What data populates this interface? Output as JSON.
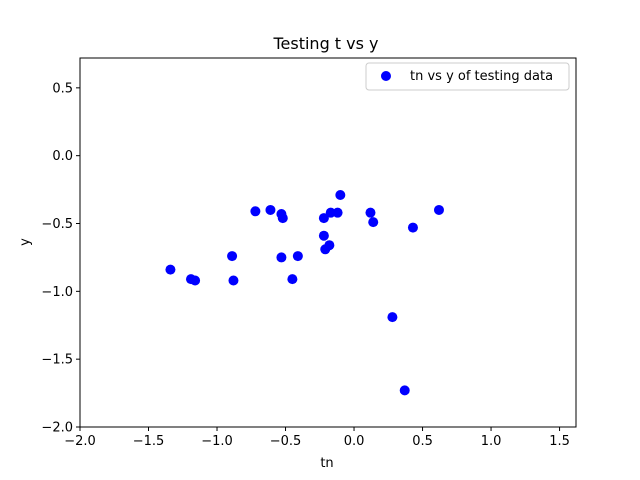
{
  "chart_data": {
    "type": "scatter",
    "title": "Testing t vs y",
    "xlabel": "tn",
    "ylabel": "y",
    "xlim": [
      -2.0,
      1.62
    ],
    "ylim": [
      -2.0,
      0.72
    ],
    "xticks": [
      -2.0,
      -1.5,
      -1.0,
      -0.5,
      0.0,
      0.5,
      1.0,
      1.5
    ],
    "xtick_labels": [
      "−2.0",
      "−1.5",
      "−1.0",
      "−0.5",
      "0.0",
      "0.5",
      "1.0",
      "1.5"
    ],
    "yticks": [
      -2.0,
      -1.5,
      -1.0,
      -0.5,
      0.0,
      0.5
    ],
    "ytick_labels": [
      "−2.0",
      "−1.5",
      "−1.0",
      "−0.5",
      "0.0",
      "0.5"
    ],
    "grid": false,
    "legend_position": "top-right",
    "series": [
      {
        "name": "tn vs y of testing data",
        "color": "#0000ff",
        "marker": "circle",
        "points": [
          [
            -1.34,
            -0.84
          ],
          [
            -1.19,
            -0.91
          ],
          [
            -1.16,
            -0.92
          ],
          [
            -0.89,
            -0.74
          ],
          [
            -0.88,
            -0.92
          ],
          [
            -0.72,
            -0.41
          ],
          [
            -0.61,
            -0.4
          ],
          [
            -0.53,
            -0.43
          ],
          [
            -0.53,
            -0.75
          ],
          [
            -0.52,
            -0.46
          ],
          [
            -0.45,
            -0.91
          ],
          [
            -0.41,
            -0.74
          ],
          [
            -0.22,
            -0.59
          ],
          [
            -0.22,
            -0.46
          ],
          [
            -0.21,
            -0.69
          ],
          [
            -0.18,
            -0.66
          ],
          [
            -0.17,
            -0.42
          ],
          [
            -0.12,
            -0.42
          ],
          [
            -0.1,
            -0.29
          ],
          [
            0.12,
            -0.42
          ],
          [
            0.14,
            -0.49
          ],
          [
            0.28,
            -1.19
          ],
          [
            0.37,
            -1.73
          ],
          [
            0.43,
            -0.53
          ],
          [
            0.62,
            -0.4
          ]
        ]
      }
    ]
  }
}
